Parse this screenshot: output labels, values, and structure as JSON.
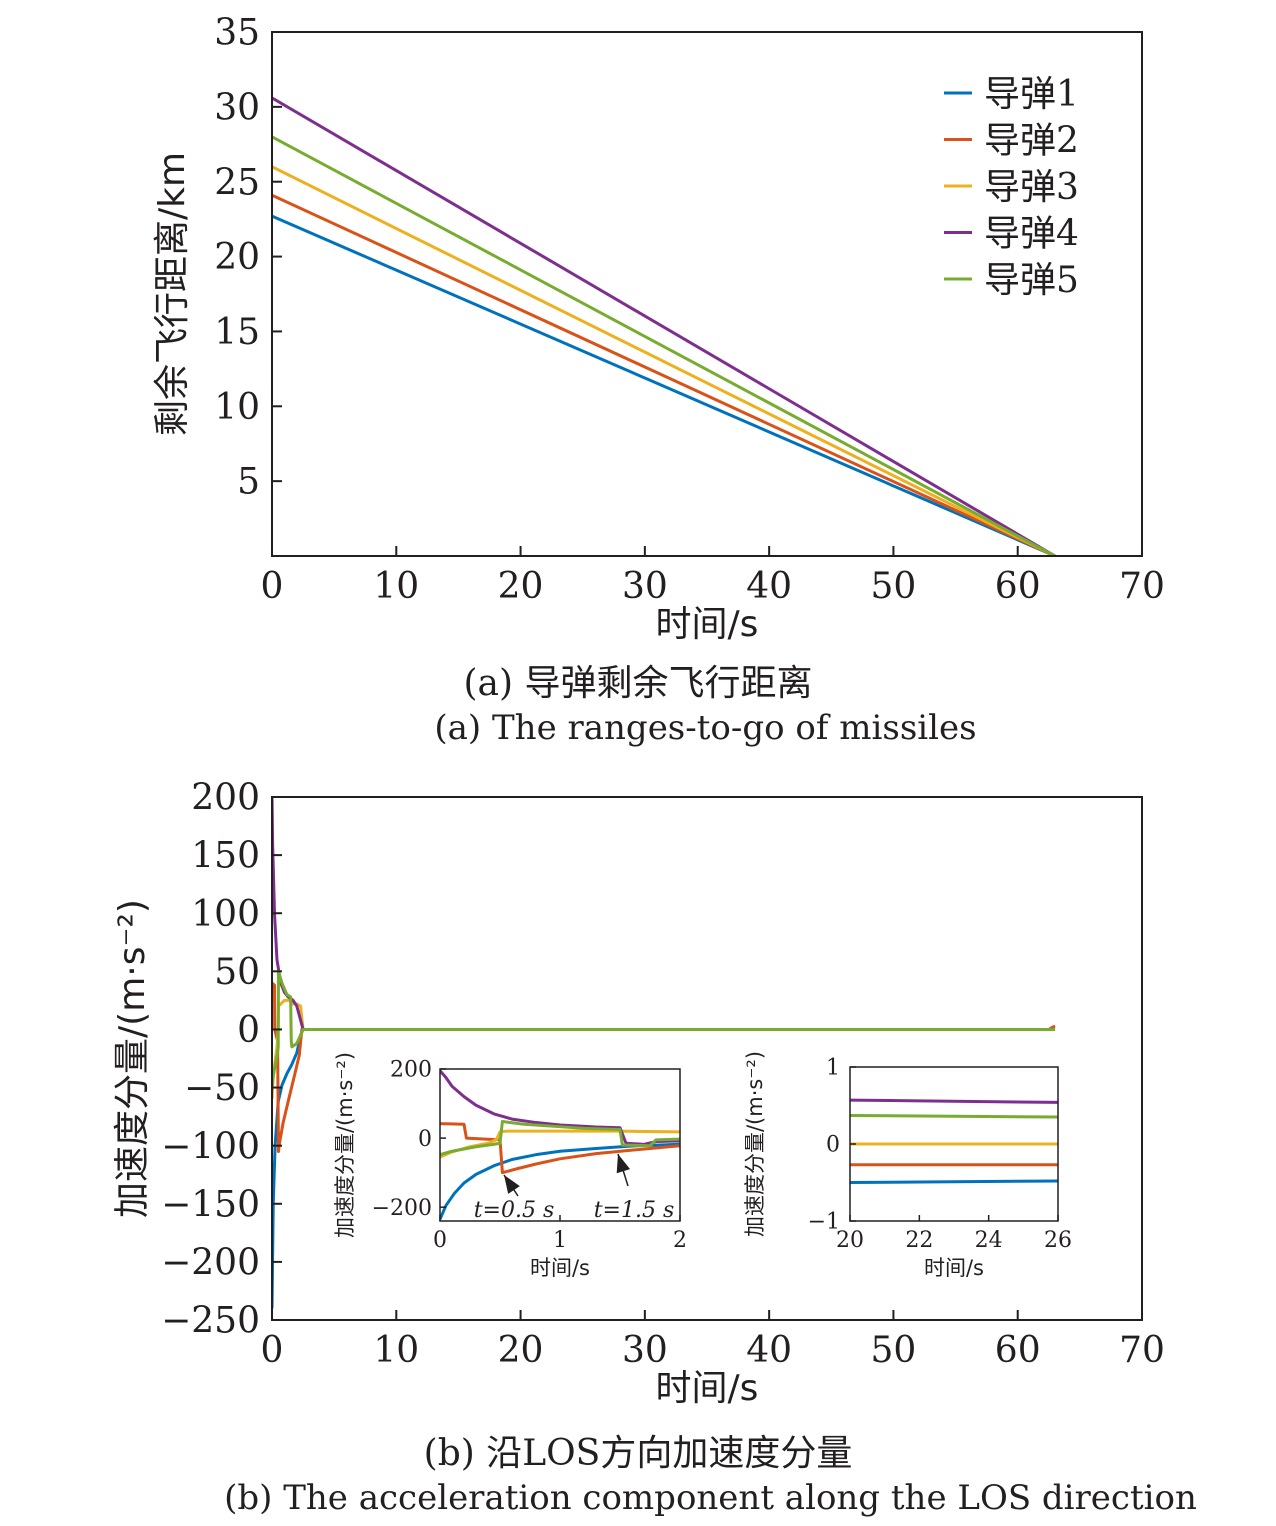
{
  "captions": {
    "a_cn": "(a) 导弹剩余飞行距离",
    "a_en": "(a) The ranges-to-go of missiles",
    "b_cn": "(b) 沿LOS方向加速度分量",
    "b_en": "(b) The acceleration component along the LOS direction"
  },
  "chart_data": [
    {
      "id": "a",
      "type": "line",
      "xlabel": "时间/s",
      "ylabel": "剩余飞行距离/km",
      "xlim": [
        0,
        70
      ],
      "ylim": [
        0,
        35
      ],
      "xticks": [
        0,
        10,
        20,
        30,
        40,
        50,
        60,
        70
      ],
      "yticks": [
        5,
        10,
        15,
        20,
        25,
        30,
        35
      ],
      "grid": false,
      "legend_position": "top-right",
      "series": [
        {
          "name": "导弹1",
          "color": "#0072BD",
          "x": [
            0,
            63
          ],
          "y": [
            22.7,
            0
          ]
        },
        {
          "name": "导弹2",
          "color": "#D95319",
          "x": [
            0,
            63
          ],
          "y": [
            24.1,
            0
          ]
        },
        {
          "name": "导弹3",
          "color": "#EDB120",
          "x": [
            0,
            63
          ],
          "y": [
            26.0,
            0
          ]
        },
        {
          "name": "导弹4",
          "color": "#7E2F8E",
          "x": [
            0,
            63
          ],
          "y": [
            30.6,
            0
          ]
        },
        {
          "name": "导弹5",
          "color": "#77AC30",
          "x": [
            0,
            63
          ],
          "y": [
            28.0,
            0
          ]
        }
      ]
    },
    {
      "id": "b",
      "type": "line",
      "xlabel": "时间/s",
      "ylabel": "加速度分量/(m·s⁻²)",
      "xlim": [
        0,
        70
      ],
      "ylim": [
        -250,
        200
      ],
      "xticks": [
        0,
        10,
        20,
        30,
        40,
        50,
        60,
        70
      ],
      "yticks": [
        -250,
        -200,
        -150,
        -100,
        -50,
        0,
        50,
        100,
        150,
        200
      ],
      "ytick_labels": [
        "−250",
        "−200",
        "−150",
        "−100",
        "−50",
        "0",
        "50",
        "100",
        "150",
        "200"
      ],
      "grid": false,
      "series": [
        {
          "color": "#0072BD",
          "x": [
            0,
            0.1,
            0.25,
            0.5,
            0.8,
            1.2,
            1.6,
            2.0,
            2.3,
            2.5,
            63
          ],
          "y": [
            -240,
            -150,
            -100,
            -62,
            -48,
            -38,
            -30,
            -20,
            -5,
            0,
            0
          ]
        },
        {
          "color": "#D95319",
          "x": [
            0,
            0.2,
            0.22,
            0.45,
            0.52,
            0.6,
            0.9,
            1.3,
            1.8,
            2.2,
            2.4,
            2.5,
            62.5,
            63
          ],
          "y": [
            40,
            38,
            0,
            -10,
            -105,
            -98,
            -80,
            -62,
            -40,
            -22,
            0,
            0,
            0,
            3
          ]
        },
        {
          "color": "#EDB120",
          "x": [
            0,
            0.1,
            0.4,
            0.5,
            0.52,
            1.0,
            1.55,
            1.6,
            2.0,
            2.3,
            2.5,
            63
          ],
          "y": [
            -60,
            -40,
            -15,
            0,
            20,
            25,
            25,
            22,
            22,
            20,
            0,
            0
          ]
        },
        {
          "color": "#7E2F8E",
          "x": [
            0,
            0.05,
            0.2,
            0.4,
            0.7,
            1.0,
            1.3,
            1.7,
            2.0,
            2.5,
            63
          ],
          "y": [
            200,
            160,
            100,
            60,
            40,
            32,
            28,
            25,
            20,
            0,
            0
          ]
        },
        {
          "color": "#77AC30",
          "x": [
            0,
            0.1,
            0.45,
            0.5,
            0.52,
            0.8,
            1.2,
            1.5,
            1.55,
            1.6,
            2.0,
            2.5,
            63
          ],
          "y": [
            -50,
            -40,
            -20,
            -15,
            50,
            40,
            30,
            28,
            -10,
            -15,
            -12,
            0,
            0
          ]
        }
      ]
    },
    {
      "id": "b_inset1",
      "type": "line",
      "xlabel": "时间/s",
      "ylabel": "加速度分量/(m·s⁻²)",
      "xlim": [
        0,
        2
      ],
      "ylim": [
        -240,
        200
      ],
      "xticks": [
        0,
        1,
        2
      ],
      "yticks": [
        -200,
        0,
        200
      ],
      "ytick_labels": [
        "−200",
        "0",
        "200"
      ],
      "annotations": [
        "t=0.5 s",
        "t=1.5 s"
      ],
      "series": [
        {
          "color": "#0072BD",
          "x": [
            0,
            0.05,
            0.12,
            0.2,
            0.3,
            0.45,
            0.6,
            0.8,
            1.0,
            1.3,
            1.6,
            2.0
          ],
          "y": [
            -235,
            -195,
            -160,
            -130,
            -105,
            -80,
            -62,
            -48,
            -38,
            -30,
            -23,
            -18
          ]
        },
        {
          "color": "#D95319",
          "x": [
            0,
            0.2,
            0.22,
            0.5,
            0.52,
            0.65,
            0.8,
            1.0,
            1.3,
            1.6,
            2.0
          ],
          "y": [
            42,
            40,
            0,
            -5,
            -100,
            -88,
            -75,
            -60,
            -45,
            -35,
            -22
          ]
        },
        {
          "color": "#EDB120",
          "x": [
            0,
            0.1,
            0.25,
            0.4,
            0.47,
            0.5,
            0.55,
            1.0,
            1.5,
            2.0
          ],
          "y": [
            -55,
            -40,
            -25,
            -15,
            -5,
            18,
            20,
            20,
            20,
            18
          ]
        },
        {
          "color": "#7E2F8E",
          "x": [
            0,
            0.05,
            0.1,
            0.2,
            0.3,
            0.45,
            0.6,
            0.8,
            1.0,
            1.3,
            1.5,
            1.55,
            1.7,
            1.8,
            2.0
          ],
          "y": [
            195,
            175,
            150,
            120,
            95,
            70,
            55,
            45,
            38,
            32,
            30,
            -15,
            -18,
            -10,
            -8
          ]
        },
        {
          "color": "#77AC30",
          "x": [
            0,
            0.1,
            0.3,
            0.45,
            0.5,
            0.52,
            0.7,
            1.0,
            1.2,
            1.5,
            1.52,
            1.75,
            1.8,
            2.0
          ],
          "y": [
            -48,
            -38,
            -25,
            -18,
            -15,
            48,
            40,
            33,
            28,
            25,
            -20,
            -22,
            -5,
            -3
          ]
        }
      ]
    },
    {
      "id": "b_inset2",
      "type": "line",
      "xlabel": "时间/s",
      "ylabel": "加速度分量/(m·s⁻²)",
      "xlim": [
        20,
        26
      ],
      "ylim": [
        -1,
        1
      ],
      "xticks": [
        20,
        22,
        24,
        26
      ],
      "yticks": [
        -1,
        0,
        1
      ],
      "ytick_labels": [
        "−1",
        "0",
        "1"
      ],
      "series": [
        {
          "color": "#0072BD",
          "x": [
            20,
            26
          ],
          "y": [
            -0.5,
            -0.48
          ]
        },
        {
          "color": "#D95319",
          "x": [
            20,
            26
          ],
          "y": [
            -0.27,
            -0.27
          ]
        },
        {
          "color": "#EDB120",
          "x": [
            20,
            26
          ],
          "y": [
            0,
            0
          ]
        },
        {
          "color": "#7E2F8E",
          "x": [
            20,
            26
          ],
          "y": [
            0.57,
            0.54
          ]
        },
        {
          "color": "#77AC30",
          "x": [
            20,
            26
          ],
          "y": [
            0.37,
            0.35
          ]
        }
      ]
    }
  ]
}
